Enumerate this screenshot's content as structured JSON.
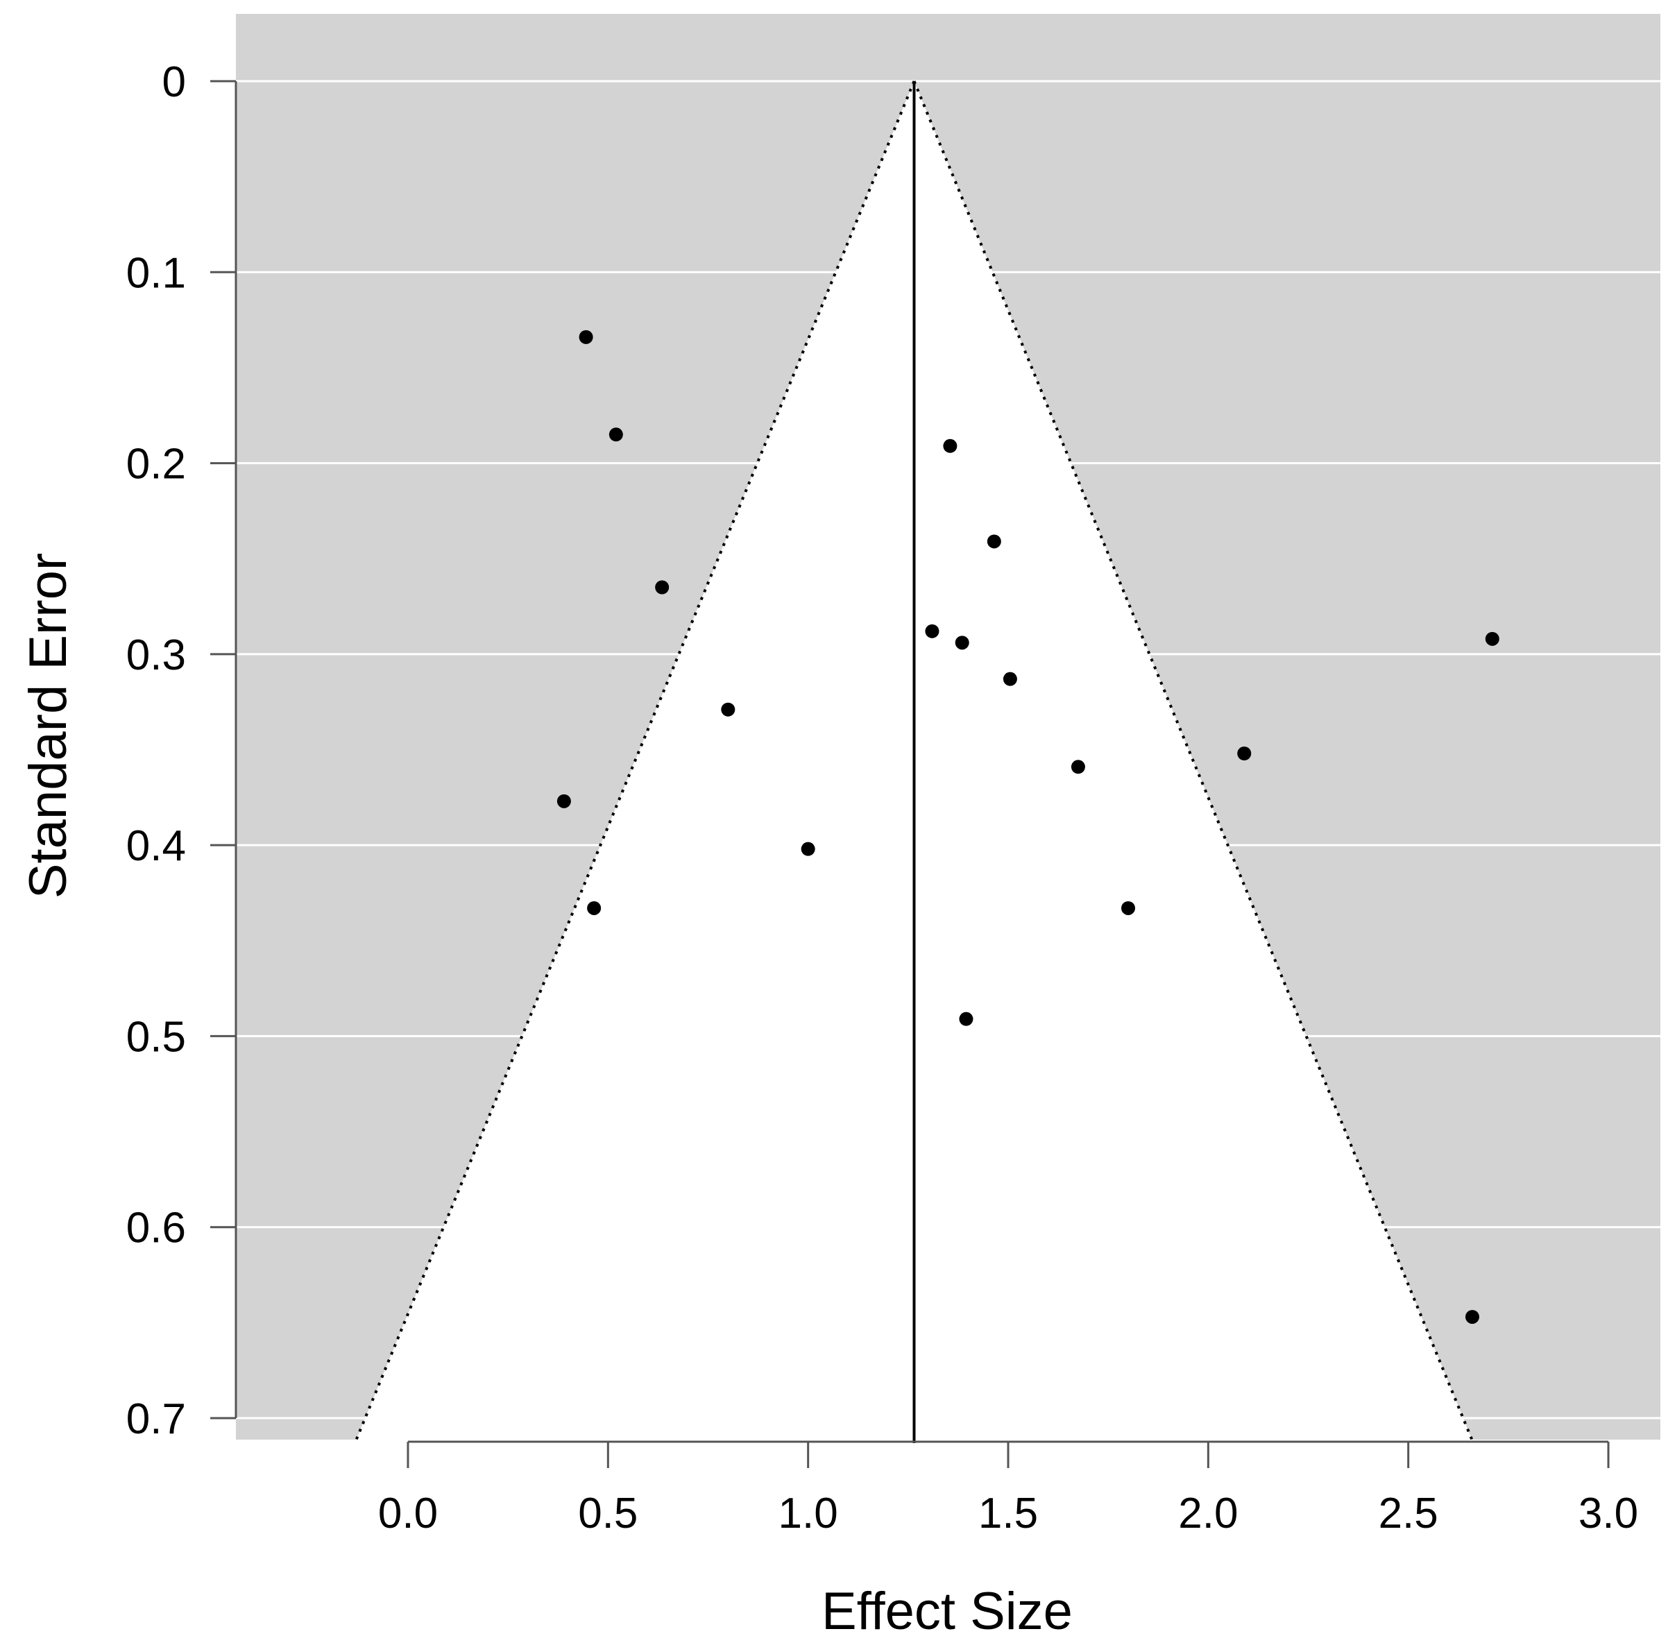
{
  "chart_data": {
    "type": "scatter",
    "subtype": "funnel-plot",
    "title": "",
    "xlabel": "Effect Size",
    "ylabel": "Standard Error",
    "xlim": [
      -0.43,
      3.13
    ],
    "ylim": [
      0,
      0.71
    ],
    "y_reversed": true,
    "x_ticks": [
      0.0,
      0.5,
      1.0,
      1.5,
      2.0,
      2.5,
      3.0
    ],
    "x_tick_labels": [
      "0.0",
      "0.5",
      "1.0",
      "1.5",
      "2.0",
      "2.5",
      "3.0"
    ],
    "y_ticks": [
      0,
      0.1,
      0.2,
      0.3,
      0.4,
      0.5,
      0.6,
      0.7
    ],
    "y_tick_labels": [
      "0",
      "0.1",
      "0.2",
      "0.3",
      "0.4",
      "0.5",
      "0.6",
      "0.7"
    ],
    "grid": "horizontal",
    "background_color": "#d3d3d3",
    "funnel_color": "#ffffff",
    "point_color": "#000000",
    "summary_effect": 1.265,
    "funnel_z": 1.96,
    "points": [
      {
        "x": 0.445,
        "y": 0.134
      },
      {
        "x": 0.52,
        "y": 0.185
      },
      {
        "x": 0.635,
        "y": 0.265
      },
      {
        "x": 0.8,
        "y": 0.329
      },
      {
        "x": 0.39,
        "y": 0.377
      },
      {
        "x": 0.465,
        "y": 0.433
      },
      {
        "x": 1.0,
        "y": 0.402
      },
      {
        "x": 1.355,
        "y": 0.191
      },
      {
        "x": 1.465,
        "y": 0.241
      },
      {
        "x": 1.31,
        "y": 0.288
      },
      {
        "x": 1.385,
        "y": 0.294
      },
      {
        "x": 1.505,
        "y": 0.313
      },
      {
        "x": 1.675,
        "y": 0.359
      },
      {
        "x": 1.8,
        "y": 0.433
      },
      {
        "x": 1.395,
        "y": 0.491
      },
      {
        "x": 2.09,
        "y": 0.352
      },
      {
        "x": 2.71,
        "y": 0.292
      },
      {
        "x": 2.66,
        "y": 0.647
      }
    ]
  }
}
